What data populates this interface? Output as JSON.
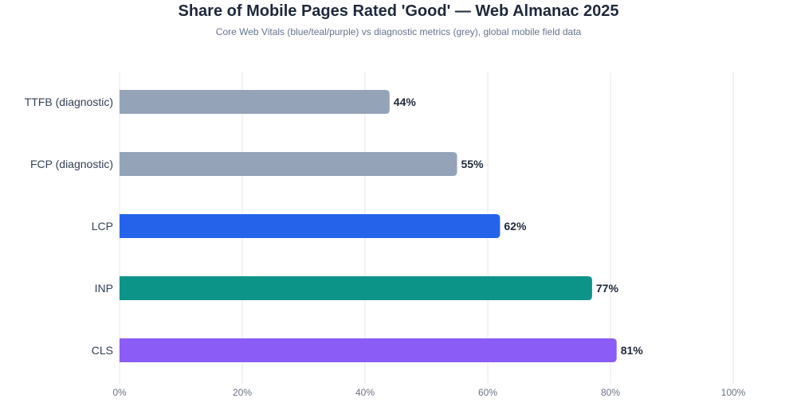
{
  "chart_data": {
    "type": "bar",
    "orientation": "horizontal",
    "title": "Share of Mobile Pages Rated 'Good' — Web Almanac 2025",
    "subtitle": "Core Web Vitals (blue/teal/purple) vs diagnostic metrics (grey), global mobile field data",
    "xlabel": "",
    "ylabel": "",
    "xlim": [
      0,
      100
    ],
    "x_ticks": [
      0,
      20,
      40,
      60,
      80,
      100
    ],
    "x_tick_labels": [
      "0%",
      "20%",
      "40%",
      "60%",
      "80%",
      "100%"
    ],
    "grid": "vertical",
    "legend": "none",
    "categories": [
      "TTFB (diagnostic)",
      "FCP (diagnostic)",
      "LCP",
      "INP",
      "CLS"
    ],
    "values": [
      44,
      55,
      62,
      77,
      81
    ],
    "value_labels": [
      "44%",
      "55%",
      "62%",
      "77%",
      "81%"
    ],
    "colors": [
      "#94a3b8",
      "#94a3b8",
      "#2563eb",
      "#0d9488",
      "#8b5cf6"
    ]
  }
}
